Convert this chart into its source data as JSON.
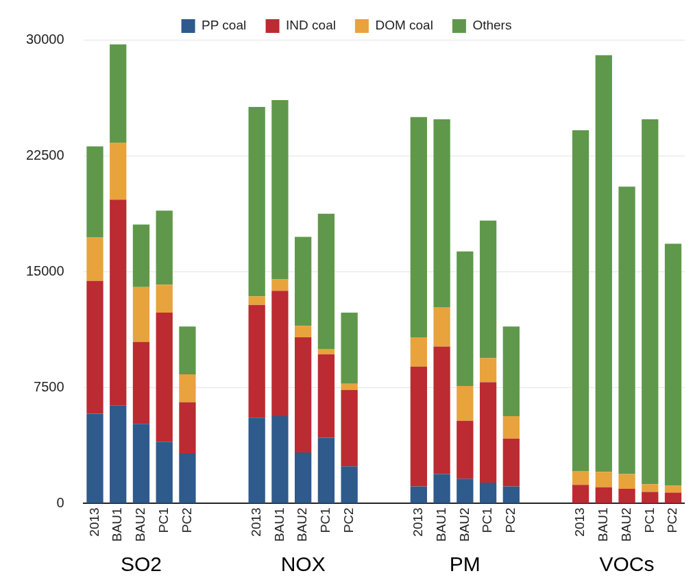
{
  "chart_data": {
    "type": "bar",
    "stacked": true,
    "categories": [
      "2013",
      "BAU1",
      "BAU2",
      "PC1",
      "PC2",
      null,
      null,
      "2013",
      "BAU1",
      "BAU2",
      "PC1",
      "PC2",
      null,
      null,
      "2013",
      "BAU1",
      "BAU2",
      "PC1",
      "PC2",
      null,
      null,
      "2013",
      "BAU1",
      "BAU2",
      "PC1",
      "PC2"
    ],
    "series": [
      {
        "name": "PP coal",
        "color": "#2e5a8c",
        "values": [
          5800,
          6350,
          5150,
          4000,
          3250,
          null,
          null,
          5550,
          5650,
          3300,
          4250,
          2400,
          null,
          null,
          1100,
          1900,
          1600,
          1350,
          1100,
          null,
          null,
          0,
          0,
          0,
          0,
          0
        ]
      },
      {
        "name": "IND coal",
        "color": "#bc2b32",
        "values": [
          8600,
          13300,
          5300,
          8350,
          3300,
          null,
          null,
          7300,
          8100,
          7450,
          5400,
          4950,
          null,
          null,
          7750,
          8250,
          3750,
          6500,
          3100,
          null,
          null,
          1200,
          1050,
          950,
          750,
          700
        ]
      },
      {
        "name": "DOM coal",
        "color": "#e8a33d",
        "values": [
          2800,
          3700,
          3550,
          1800,
          1800,
          null,
          null,
          550,
          750,
          750,
          350,
          400,
          null,
          null,
          1900,
          2550,
          2250,
          1550,
          1450,
          null,
          null,
          900,
          1000,
          950,
          500,
          450
        ]
      },
      {
        "name": "Others",
        "color": "#5f984a",
        "values": [
          5900,
          6350,
          4050,
          4800,
          3100,
          null,
          null,
          12250,
          11600,
          5750,
          8750,
          4600,
          null,
          null,
          14250,
          12150,
          8700,
          8900,
          5800,
          null,
          null,
          22050,
          26950,
          18600,
          23600,
          15650
        ]
      }
    ],
    "ylim": [
      0,
      30000
    ],
    "yticks": [
      0,
      7500,
      15000,
      22500,
      30000
    ],
    "grid": "y",
    "legend": "top",
    "annotations": [
      "SO2",
      "NOX",
      "PM",
      "VOCs"
    ]
  }
}
